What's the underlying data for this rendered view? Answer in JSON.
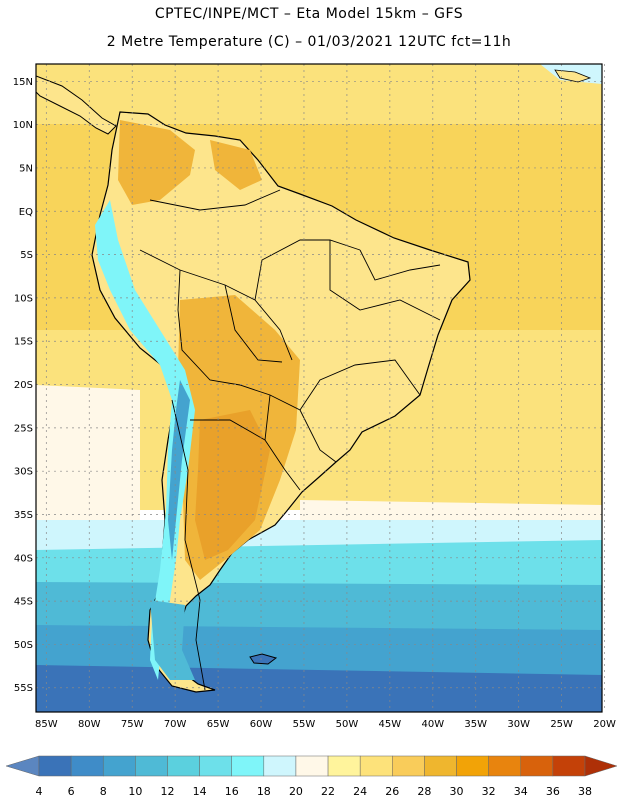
{
  "header": {
    "line1": "CPTEC/INPE/MCT –  Eta Model 15km – GFS",
    "line2": "2 Metre Temperature (C) – 01/03/2021 12UTC fct=11h"
  },
  "axes": {
    "lat_labels": [
      "15N",
      "10N",
      "5N",
      "EQ",
      "5S",
      "10S",
      "15S",
      "20S",
      "25S",
      "30S",
      "35S",
      "40S",
      "45S",
      "50S",
      "55S"
    ],
    "lat_values": [
      15,
      10,
      5,
      0,
      -5,
      -10,
      -15,
      -20,
      -25,
      -30,
      -35,
      -40,
      -45,
      -50,
      -55
    ],
    "lon_labels": [
      "85W",
      "80W",
      "75W",
      "70W",
      "65W",
      "60W",
      "55W",
      "50W",
      "45W",
      "40W",
      "35W",
      "30W",
      "25W",
      "20W"
    ],
    "lon_values": [
      -85,
      -80,
      -75,
      -70,
      -65,
      -60,
      -55,
      -50,
      -45,
      -40,
      -35,
      -30,
      -25,
      -20
    ],
    "lon_range": [
      -86.2,
      -20.3
    ],
    "lat_range": [
      -57.8,
      17.0
    ]
  },
  "colorbar": {
    "levels": [
      "4",
      "6",
      "8",
      "10",
      "12",
      "14",
      "16",
      "18",
      "20",
      "22",
      "24",
      "26",
      "28",
      "30",
      "32",
      "34",
      "36",
      "38"
    ],
    "colors": [
      "#5b86c0",
      "#3a73b8",
      "#3f8cc8",
      "#44a3cf",
      "#4fbad6",
      "#5bd0de",
      "#6de0ea",
      "#7ff5f9",
      "#cff6fd",
      "#fff8e8",
      "#fff49c",
      "#fde27a",
      "#f9cc5a",
      "#efb62e",
      "#f2a307",
      "#e8840e",
      "#d8620c",
      "#c44108",
      "#ae3007"
    ]
  },
  "map_colors": {
    "ocean_tropical": "#f8d45a",
    "ocean_subtropical": "#fbe27c",
    "land_amazon": "#fde58c",
    "land_hot": "#f0b53a",
    "land_very_hot": "#e9a12a",
    "mid_lat_light": "#fff8e8",
    "mid_lat_cyan": "#cff6fd",
    "cold_1": "#6de0ea",
    "cold_2": "#4fbad6",
    "cold_3": "#44a3cf",
    "cold_4": "#3a73b8",
    "andes": "#7ff5f9",
    "border": "#000000",
    "grid": "#888888"
  }
}
